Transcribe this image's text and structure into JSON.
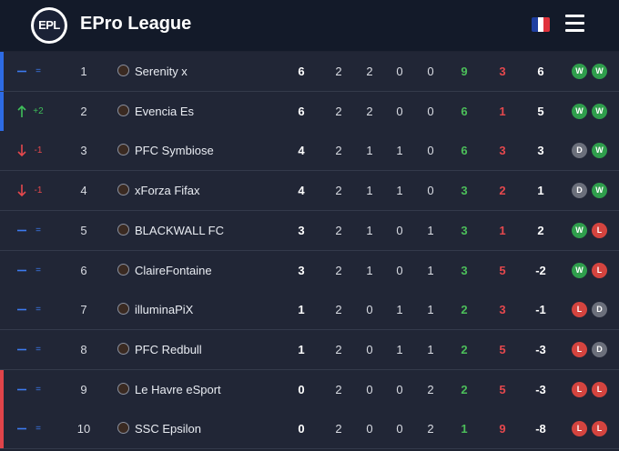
{
  "header": {
    "logo": "EPL",
    "title": "EPro League"
  },
  "table": {
    "rows": [
      {
        "change": "=",
        "rank": 1,
        "team": "Serenity x",
        "points": 6,
        "played": 2,
        "won": 2,
        "drawn": 0,
        "lost": 0,
        "goals_for": 9,
        "goals_against": 3,
        "diff": 6,
        "form": [
          "W",
          "W"
        ]
      },
      {
        "change": "+2",
        "rank": 2,
        "team": "Evencia Es",
        "points": 6,
        "played": 2,
        "won": 2,
        "drawn": 0,
        "lost": 0,
        "goals_for": 6,
        "goals_against": 1,
        "diff": 5,
        "form": [
          "W",
          "W"
        ]
      },
      {
        "change": "-1",
        "rank": 3,
        "team": "PFC Symbiose",
        "points": 4,
        "played": 2,
        "won": 1,
        "drawn": 1,
        "lost": 0,
        "goals_for": 6,
        "goals_against": 3,
        "diff": 3,
        "form": [
          "D",
          "W"
        ]
      },
      {
        "change": "-1",
        "rank": 4,
        "team": "xForza Fifax",
        "points": 4,
        "played": 2,
        "won": 1,
        "drawn": 1,
        "lost": 0,
        "goals_for": 3,
        "goals_against": 2,
        "diff": 1,
        "form": [
          "D",
          "W"
        ]
      },
      {
        "change": "=",
        "rank": 5,
        "team": "BLACKWALL FC",
        "points": 3,
        "played": 2,
        "won": 1,
        "drawn": 0,
        "lost": 1,
        "goals_for": 3,
        "goals_against": 1,
        "diff": 2,
        "form": [
          "W",
          "L"
        ]
      },
      {
        "change": "=",
        "rank": 6,
        "team": "ClaireFontaine",
        "points": 3,
        "played": 2,
        "won": 1,
        "drawn": 0,
        "lost": 1,
        "goals_for": 3,
        "goals_against": 5,
        "diff": -2,
        "form": [
          "W",
          "L"
        ]
      },
      {
        "change": "=",
        "rank": 7,
        "team": "illuminaPiX",
        "points": 1,
        "played": 2,
        "won": 0,
        "drawn": 1,
        "lost": 1,
        "goals_for": 2,
        "goals_against": 3,
        "diff": -1,
        "form": [
          "L",
          "D"
        ]
      },
      {
        "change": "=",
        "rank": 8,
        "team": "PFC Redbull",
        "points": 1,
        "played": 2,
        "won": 0,
        "drawn": 1,
        "lost": 1,
        "goals_for": 2,
        "goals_against": 5,
        "diff": -3,
        "form": [
          "L",
          "D"
        ]
      },
      {
        "change": "=",
        "rank": 9,
        "team": "Le Havre eSport",
        "points": 0,
        "played": 2,
        "won": 0,
        "drawn": 0,
        "lost": 2,
        "goals_for": 2,
        "goals_against": 5,
        "diff": -3,
        "form": [
          "L",
          "L"
        ]
      },
      {
        "change": "=",
        "rank": 10,
        "team": "SSC Epsilon",
        "points": 0,
        "played": 2,
        "won": 0,
        "drawn": 0,
        "lost": 2,
        "goals_for": 1,
        "goals_against": 9,
        "diff": -8,
        "form": [
          "L",
          "L"
        ]
      }
    ]
  }
}
